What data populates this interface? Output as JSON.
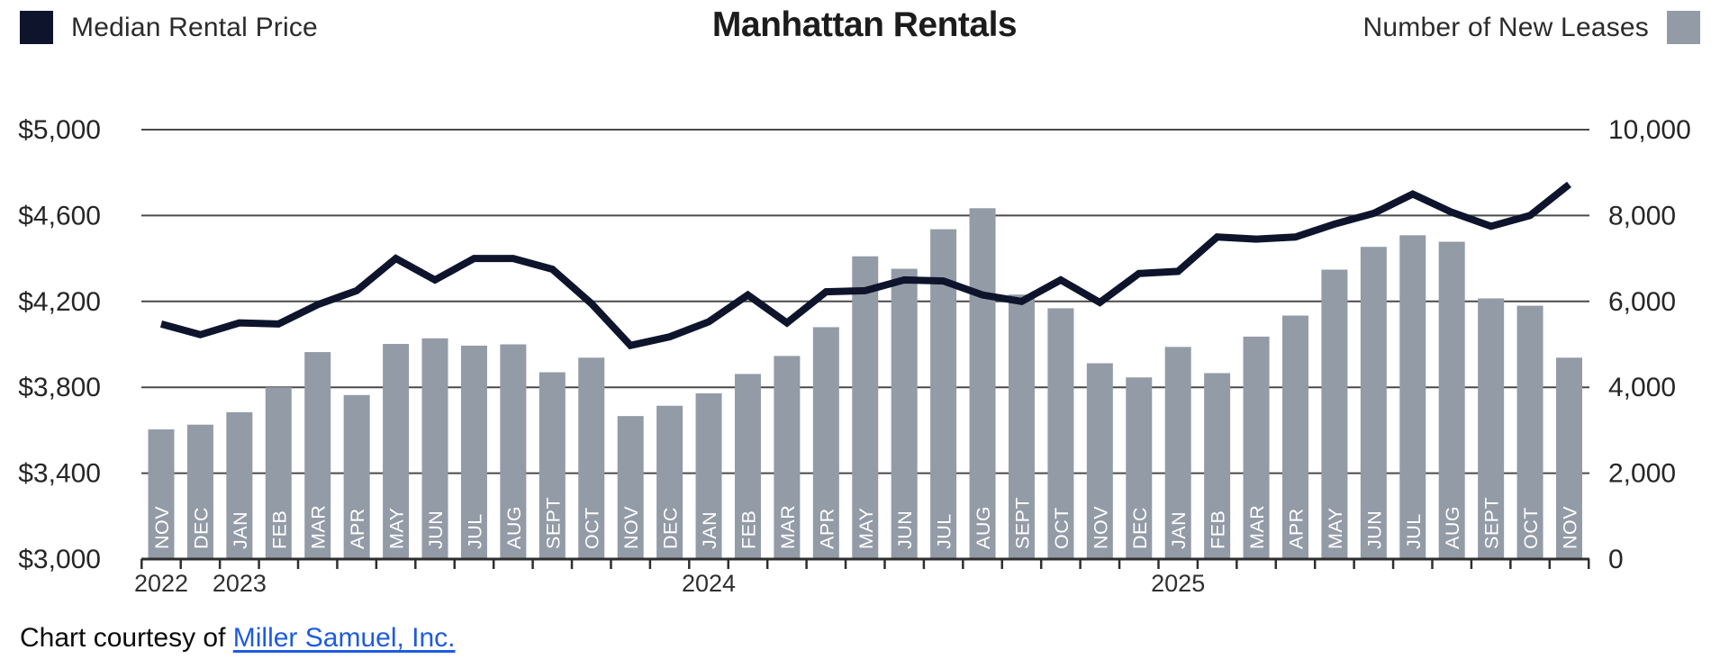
{
  "header": {
    "title": "Manhattan Rentals",
    "legend_left": {
      "label": "Median Rental Price"
    },
    "legend_right": {
      "label": "Number of New Leases"
    }
  },
  "footer": {
    "prefix": "Chart courtesy of ",
    "link_text": "Miller Samuel, Inc."
  },
  "colors": {
    "line": "#0e142b",
    "bar": "#939ba7",
    "grid": "#4a4a4a",
    "axis": "#2e2e2e",
    "label": "#262626",
    "year": "#2f2f2f",
    "title": "#1c1c1c",
    "month": "#ffffff",
    "link": "#1d5be0"
  },
  "chart_data": {
    "type": "bar+line combo",
    "title": "Manhattan Rentals",
    "x": [
      "NOV",
      "DEC",
      "JAN",
      "FEB",
      "MAR",
      "APR",
      "MAY",
      "JUN",
      "JUL",
      "AUG",
      "SEPT",
      "OCT",
      "NOV",
      "DEC",
      "JAN",
      "FEB",
      "MAR",
      "APR",
      "MAY",
      "JUN",
      "JUL",
      "AUG",
      "SEPT",
      "OCT",
      "NOV",
      "DEC",
      "JAN",
      "FEB",
      "MAR",
      "APR",
      "MAY",
      "JUN",
      "JUL",
      "AUG",
      "SEPT",
      "OCT",
      "NOV"
    ],
    "years": [
      {
        "label": "2022",
        "month_index": 0
      },
      {
        "label": "2023",
        "month_index": 2
      },
      {
        "label": "2024",
        "month_index": 14
      },
      {
        "label": "2025",
        "month_index": 26
      }
    ],
    "series": [
      {
        "name": "Median Rental Price",
        "type": "line",
        "axis": "left",
        "values": [
          4095,
          4045,
          4100,
          4095,
          4185,
          4250,
          4400,
          4300,
          4400,
          4400,
          4350,
          4190,
          3995,
          4035,
          4105,
          4230,
          4100,
          4245,
          4250,
          4300,
          4295,
          4230,
          4200,
          4300,
          4195,
          4330,
          4340,
          4500,
          4490,
          4500,
          4560,
          4610,
          4700,
          4615,
          4550,
          4600,
          4745
        ]
      },
      {
        "name": "Number of New Leases",
        "type": "bar",
        "axis": "right",
        "values": [
          3020,
          3130,
          3420,
          4000,
          4820,
          3820,
          5010,
          5140,
          4970,
          5000,
          4350,
          4690,
          3330,
          3570,
          3860,
          4310,
          4730,
          5400,
          7050,
          6760,
          7680,
          8170,
          6160,
          5840,
          4560,
          4230,
          4940,
          4330,
          5180,
          5670,
          6740,
          7270,
          7540,
          7390,
          6070,
          5900,
          4690
        ]
      }
    ],
    "left_axis": {
      "min": 3000,
      "max": 5000,
      "tick_labels": [
        "$5,000",
        "$4,600",
        "$4,200",
        "$3,800",
        "$3,400",
        "$3,000"
      ]
    },
    "right_axis": {
      "min": 0,
      "max": 10000,
      "tick_labels": [
        "10,000",
        "8,000",
        "6,000",
        "4,000",
        "2,000",
        "0"
      ]
    },
    "grid": "horizontal only",
    "legend_position": "top-left (line), top-right (bars)"
  }
}
